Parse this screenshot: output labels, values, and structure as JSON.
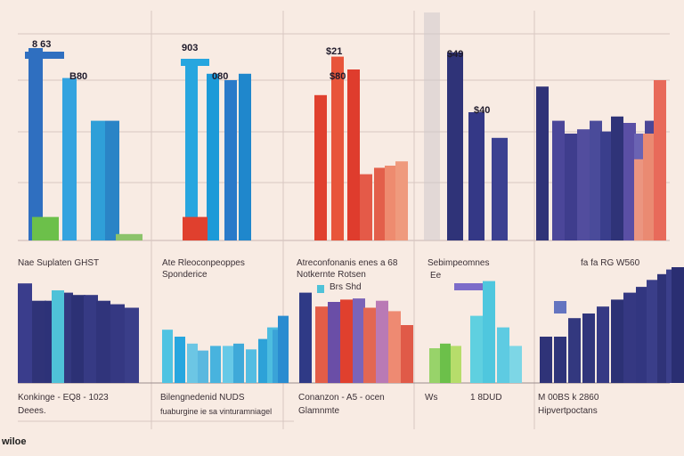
{
  "colors": {
    "background": "#f8ebe3",
    "grid": "#d8c7c2",
    "blue": "#2f6fc0",
    "cyan": "#27a6df",
    "red": "#e0402e",
    "salmon": "#ea8a72",
    "navy": "#2f3378",
    "purple": "#7d6cc9",
    "green": "#6cc04a",
    "teal": "#4fc2d8"
  },
  "footer": {
    "text": "wiloe"
  },
  "chart_data": [
    {
      "type": "bar",
      "panel": "top-1",
      "value_labels": [
        "8 63",
        "B80"
      ],
      "series": [
        {
          "name": "blue",
          "values": [
            9.0,
            7.6,
            5.6,
            5.6
          ]
        },
        {
          "name": "green",
          "values": [
            1.1,
            0.3
          ]
        }
      ],
      "ylim": [
        0,
        10
      ]
    },
    {
      "type": "bar",
      "panel": "top-2",
      "value_labels": [
        "903",
        "080"
      ],
      "series": [
        {
          "name": "cyan",
          "values": [
            8.5,
            7.8,
            7.5,
            7.8
          ]
        },
        {
          "name": "red",
          "values": [
            1.1
          ]
        }
      ],
      "ylim": [
        0,
        10
      ]
    },
    {
      "type": "bar",
      "panel": "top-3",
      "value_labels": [
        "$21",
        "$80"
      ],
      "series": [
        {
          "name": "red",
          "values": [
            6.8,
            8.6,
            8.0,
            3.1,
            3.4,
            3.5,
            3.7
          ]
        }
      ],
      "ylim": [
        0,
        10
      ]
    },
    {
      "type": "bar",
      "panel": "top-4",
      "value_labels": [
        "$49",
        "$40"
      ],
      "series": [
        {
          "name": "navy",
          "values": [
            8.8,
            6.0,
            4.8
          ]
        }
      ],
      "ylim": [
        0,
        10
      ]
    },
    {
      "type": "bar",
      "panel": "top-5",
      "series": [
        {
          "name": "navy",
          "values": [
            7.2,
            5.6,
            5.0,
            5.2,
            5.6,
            5.1,
            5.8,
            5.5,
            5.0,
            5.6
          ]
        },
        {
          "name": "salmon",
          "values": [
            3.8,
            5.0,
            7.5
          ]
        }
      ],
      "ylim": [
        0,
        10
      ]
    },
    {
      "type": "bar",
      "panel": "bottom-1",
      "title": "Nae Suplaten GHST",
      "footer_lines": [
        "Konkinge - EQ8 - 1023",
        "Deees."
      ],
      "series": [
        {
          "name": "navy",
          "values": [
            8.6,
            7.1,
            7.1,
            7.8,
            7.6,
            7.6,
            7.1,
            6.8,
            6.5
          ]
        },
        {
          "name": "teal",
          "values": [
            8.0
          ]
        }
      ],
      "ylim": [
        0,
        10
      ]
    },
    {
      "type": "bar",
      "panel": "bottom-2",
      "title": "Ate Rleoconpeoppes",
      "subtitle": "Sponderice",
      "footer_lines": [
        "Bilengnedenid NUDS",
        "fuaburgine ie sa vinturamniagel"
      ],
      "series": [
        {
          "name": "cyan",
          "values": [
            4.6,
            4.0,
            3.4,
            2.8,
            3.2,
            3.2,
            3.4,
            2.9,
            3.8,
            4.8,
            4.6,
            5.8
          ]
        }
      ],
      "ylim": [
        0,
        10
      ]
    },
    {
      "type": "bar",
      "panel": "bottom-3",
      "title": "Atreconfonanis enes a 68",
      "subtitle": "Notkernte Rotsen",
      "legend": "Brs Shd",
      "footer_lines": [
        "Conanzon - A5 - ocen",
        "Glamnmte"
      ],
      "series": [
        {
          "name": "mixed",
          "values": [
            7.8,
            6.6,
            7.0,
            7.2,
            7.3,
            6.5,
            7.1,
            6.2,
            5.0
          ]
        }
      ],
      "ylim": [
        0,
        10
      ]
    },
    {
      "type": "bar",
      "panel": "bottom-4",
      "title": "Sebimpeomnes",
      "legend": "Ee",
      "footer_lines": [
        "Ws",
        "1 8DUD"
      ],
      "series": [
        {
          "name": "green",
          "values": [
            3.0,
            3.4,
            3.2
          ]
        },
        {
          "name": "teal",
          "values": [
            5.8,
            8.8,
            4.8,
            3.2
          ]
        }
      ],
      "ylim": [
        0,
        10
      ]
    },
    {
      "type": "area",
      "panel": "bottom-5",
      "title": "fa fa RG W560",
      "footer_lines": [
        "M 00BS  k 2860",
        "Hipvertpoctans"
      ],
      "series": [
        {
          "name": "navy",
          "values": [
            4.0,
            4.0,
            5.6,
            6.0,
            6.6,
            7.2,
            7.8,
            8.3,
            8.9,
            9.4,
            9.8,
            10.0
          ]
        }
      ],
      "ylim": [
        0,
        10
      ]
    }
  ]
}
